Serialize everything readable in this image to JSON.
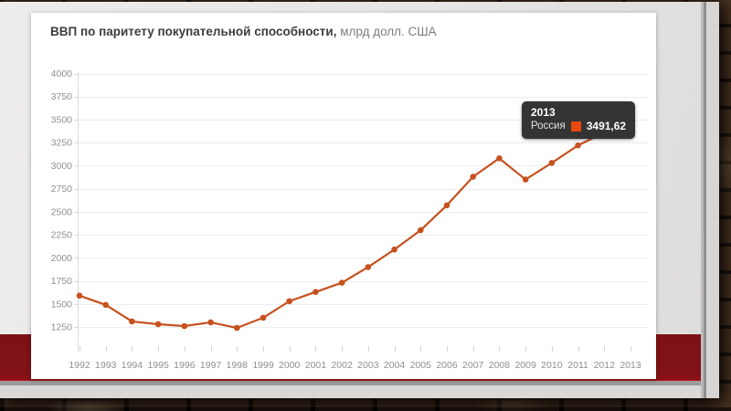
{
  "slide": {
    "background_color": "#e8e7e5",
    "accent_band_color": "#7d1115",
    "accent_strip_color": "#b8161c"
  },
  "chart": {
    "title": "ВВП по паритету покупательной способности,",
    "title_units": "млрд долл. США",
    "tooltip": {
      "year": "2013",
      "series": "Россия",
      "value": "3491,62",
      "marker_color": "#e8490d",
      "background_color": "#343434"
    }
  },
  "chart_data": {
    "type": "line",
    "title": "ВВП по паритету покупательной способности, млрд долл. США",
    "x": [
      1992,
      1993,
      1994,
      1995,
      1996,
      1997,
      1998,
      1999,
      2000,
      2001,
      2002,
      2003,
      2004,
      2005,
      2006,
      2007,
      2008,
      2009,
      2010,
      2011,
      2012,
      2013
    ],
    "series": [
      {
        "name": "Россия",
        "color": "#c6511f",
        "values": [
          1590,
          1490,
          1310,
          1280,
          1260,
          1300,
          1240,
          1350,
          1530,
          1630,
          1730,
          1900,
          2090,
          2300,
          2570,
          2880,
          3080,
          2850,
          3030,
          3220,
          3360,
          3491.62
        ]
      }
    ],
    "ylim": [
      1250,
      4000
    ],
    "yticks": [
      1250,
      1500,
      1750,
      2000,
      2250,
      2500,
      2750,
      3000,
      3250,
      3500,
      3750,
      4000
    ],
    "grid": true,
    "legend_position": "none",
    "highlighted_point": {
      "x": 2013,
      "value_label": "3491,62",
      "marker_style": "open-circle"
    }
  }
}
